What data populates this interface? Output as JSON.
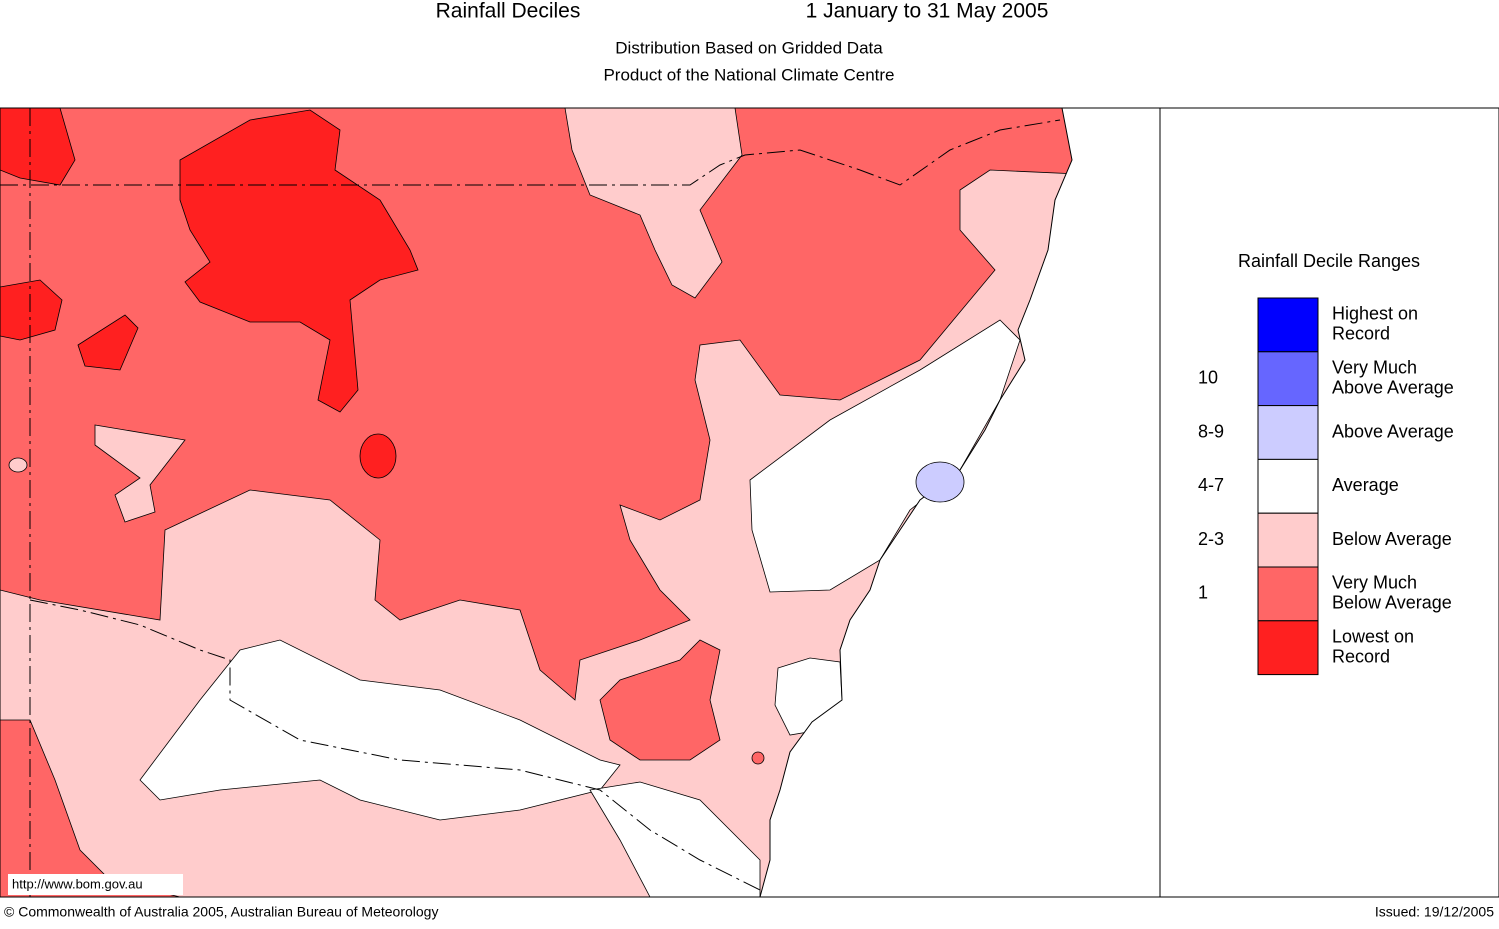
{
  "header": {
    "title": "Rainfall Deciles",
    "period": "1 January to 31 May 2005",
    "subtitle_lines": [
      "Distribution Based on Gridded Data",
      "Product of the National Climate Centre"
    ]
  },
  "map": {
    "url": "http://www.bom.gov.au"
  },
  "legend": {
    "title": "Rainfall Decile Ranges",
    "entries": [
      {
        "lines": [
          "Highest on",
          "Record"
        ],
        "color": "#0000ff"
      },
      {
        "range": "10",
        "lines": [
          "Very Much",
          "Above Average"
        ],
        "color": "#6666ff"
      },
      {
        "range": "8-9",
        "lines": [
          "Above Average"
        ],
        "color": "#ccccff"
      },
      {
        "range": "4-7",
        "lines": [
          "Average"
        ],
        "color": "#ffffff"
      },
      {
        "range": "2-3",
        "lines": [
          "Below Average"
        ],
        "color": "#ffcccc"
      },
      {
        "range": "1",
        "lines": [
          "Very Much",
          "Below Average"
        ],
        "color": "#ff6666"
      },
      {
        "lines": [
          "Lowest on",
          "Record"
        ],
        "color": "#ff2020"
      }
    ]
  },
  "footer": {
    "copyright": "© Commonwealth of Australia 2005, Australian Bureau of Meteorology",
    "issued": "Issued: 19/12/2005"
  }
}
